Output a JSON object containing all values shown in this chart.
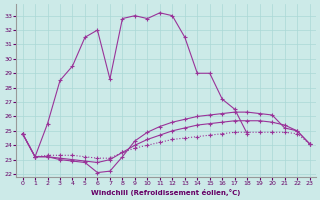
{
  "xlabel": "Windchill (Refroidissement éolien,°C)",
  "background_color": "#cceae8",
  "grid_color": "#aad8d6",
  "line_color": "#993399",
  "x_ticks": [
    0,
    1,
    2,
    3,
    4,
    5,
    6,
    7,
    8,
    9,
    10,
    11,
    12,
    13,
    14,
    15,
    16,
    17,
    18,
    19,
    20,
    21,
    22,
    23
  ],
  "y_ticks": [
    22,
    23,
    24,
    25,
    26,
    27,
    28,
    29,
    30,
    31,
    32,
    33
  ],
  "ylim": [
    21.8,
    33.8
  ],
  "xlim": [
    -0.5,
    23.5
  ],
  "series": [
    {
      "x": [
        0,
        1,
        2,
        3,
        4,
        5,
        6,
        7,
        8,
        9,
        10,
        11,
        12,
        13,
        14,
        15,
        16,
        17,
        18,
        19,
        20,
        21,
        22,
        23
      ],
      "y": [
        24.8,
        23.2,
        23.3,
        23.3,
        23.3,
        23.2,
        23.1,
        23.1,
        23.5,
        23.8,
        24.0,
        24.2,
        24.4,
        24.5,
        24.6,
        24.7,
        24.8,
        24.9,
        24.9,
        24.9,
        24.9,
        24.9,
        24.8,
        24.1
      ],
      "dotted": true
    },
    {
      "x": [
        0,
        1,
        2,
        3,
        4,
        5,
        6,
        7,
        8,
        9,
        10,
        11,
        12,
        13,
        14,
        15,
        16,
        17,
        18,
        19,
        20,
        21,
        22,
        23
      ],
      "y": [
        24.8,
        23.2,
        23.2,
        23.1,
        23.0,
        22.9,
        22.8,
        23.0,
        23.5,
        24.0,
        24.4,
        24.7,
        25.0,
        25.2,
        25.4,
        25.5,
        25.6,
        25.7,
        25.7,
        25.7,
        25.6,
        25.4,
        25.0,
        24.1
      ],
      "dotted": false
    },
    {
      "x": [
        0,
        1,
        2,
        3,
        4,
        5,
        6,
        7,
        8,
        9,
        10,
        11,
        12,
        13,
        14,
        15,
        16,
        17,
        18,
        19,
        20,
        21,
        22,
        23
      ],
      "y": [
        24.8,
        23.2,
        23.2,
        23.0,
        22.9,
        22.8,
        22.1,
        22.2,
        23.2,
        24.3,
        24.9,
        25.3,
        25.6,
        25.8,
        26.0,
        26.1,
        26.2,
        26.3,
        26.3,
        26.2,
        26.1,
        25.2,
        25.0,
        24.1
      ],
      "dotted": false
    },
    {
      "x": [
        0,
        1,
        2,
        3,
        4,
        5,
        6,
        7,
        8,
        9,
        10,
        11,
        12,
        13,
        14,
        15,
        16,
        17,
        18
      ],
      "y": [
        24.8,
        23.2,
        25.5,
        28.5,
        29.5,
        31.5,
        32.0,
        28.6,
        32.8,
        33.0,
        32.8,
        33.2,
        33.0,
        31.5,
        29.0,
        29.0,
        27.2,
        26.5,
        24.8
      ],
      "dotted": false
    }
  ]
}
